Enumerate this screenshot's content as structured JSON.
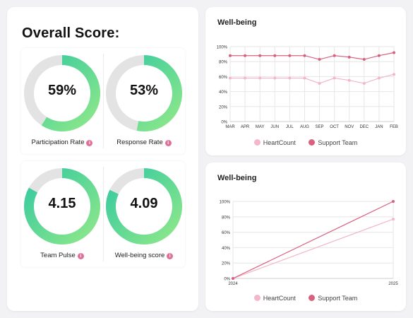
{
  "overall": {
    "title": "Overall Score:",
    "kpis": [
      {
        "value": "59%",
        "label": "Participation Rate",
        "fraction": 0.59
      },
      {
        "value": "53%",
        "label": "Response Rate",
        "fraction": 0.53
      },
      {
        "value": "4.15",
        "label": "Team Pulse",
        "fraction": 0.83
      },
      {
        "value": "4.09",
        "label": "Well-being score",
        "fraction": 0.82
      }
    ],
    "info_icon": "i"
  },
  "colors": {
    "donut_track": "#e3e3e3",
    "donut_start": "#8ee88a",
    "donut_end": "#34c9a0",
    "heartcount": "#f4b6c8",
    "support_team": "#d9607f"
  },
  "chart_data": [
    {
      "type": "line",
      "title": "Well-being",
      "x": [
        "MAR",
        "APR",
        "MAY",
        "JUN",
        "JUL",
        "AUG",
        "SEP",
        "OCT",
        "NOV",
        "DEC",
        "JAN",
        "FEB"
      ],
      "ylim": [
        0,
        100
      ],
      "yticks": [
        "0%",
        "20%",
        "40%",
        "60%",
        "80%",
        "100%"
      ],
      "grid": true,
      "legend_position": "bottom",
      "series": [
        {
          "name": "HeartCount",
          "values": [
            58,
            58,
            58,
            58,
            58,
            58,
            51,
            58,
            55,
            51,
            58,
            63
          ]
        },
        {
          "name": "Support Team",
          "values": [
            88,
            88,
            88,
            88,
            88,
            88,
            83,
            88,
            86,
            83,
            88,
            92
          ]
        }
      ]
    },
    {
      "type": "line",
      "title": "Well-being",
      "x": [
        "2024",
        "2025"
      ],
      "ylim": [
        0,
        100
      ],
      "yticks": [
        "0%",
        "20%",
        "40%",
        "60%",
        "80%",
        "100%"
      ],
      "grid": true,
      "legend_position": "bottom",
      "series": [
        {
          "name": "HeartCount",
          "values": [
            0,
            77
          ]
        },
        {
          "name": "Support Team",
          "values": [
            0,
            100
          ]
        }
      ]
    }
  ]
}
